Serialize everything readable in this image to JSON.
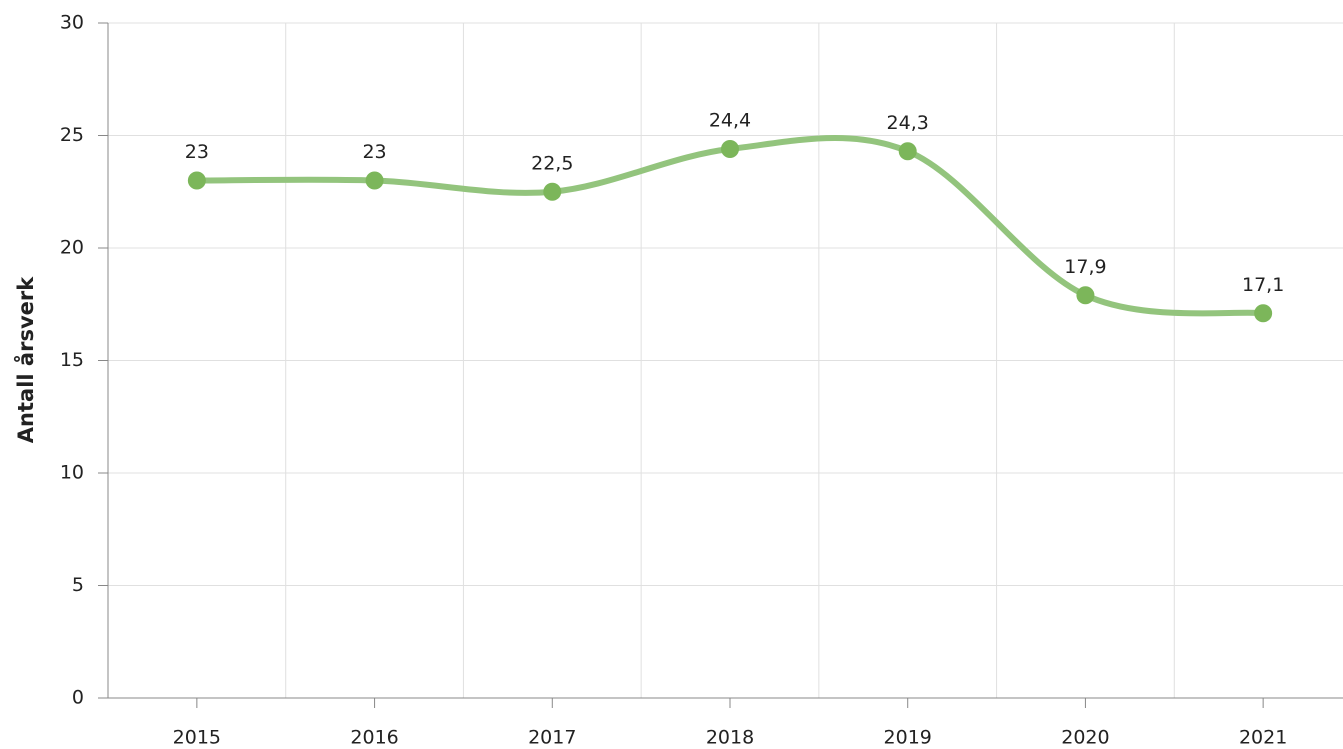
{
  "chart_data": {
    "type": "line",
    "y_label": "Antall årsverk",
    "categories": [
      "2015",
      "2016",
      "2017",
      "2018",
      "2019",
      "2020",
      "2021"
    ],
    "series": [
      {
        "name": "Antall årsverk",
        "color": "#93c47d",
        "marker_color": "#7cb65a",
        "values": [
          23,
          23,
          22.5,
          24.4,
          24.3,
          17.9,
          17.1
        ],
        "value_labels": [
          "23",
          "23",
          "22,5",
          "24,4",
          "24,3",
          "17,9",
          "17,1"
        ]
      }
    ],
    "ylim": [
      0,
      30
    ],
    "yticks": [
      0,
      5,
      10,
      15,
      20,
      25,
      30
    ],
    "grid": true,
    "smooth": true
  }
}
